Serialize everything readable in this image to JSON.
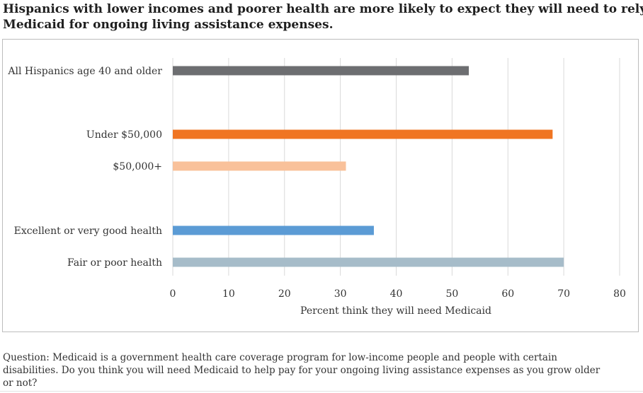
{
  "title_lines": [
    "Hispanics with lower incomes and poorer health are more likely to expect they will need to rely on",
    "Medicaid for ongoing living assistance expenses."
  ],
  "question_lines": [
    "Question: Medicaid is a government health care coverage program for low-income people and people with certain",
    "disabilities. Do you think you will need Medicaid to help pay for your ongoing living assistance expenses as you grow older",
    "or not?"
  ],
  "chart_data": {
    "type": "bar",
    "orientation": "horizontal",
    "categories": [
      "All Hispanics age 40 and older",
      "Under $50,000",
      "$50,000+",
      "Excellent or very good health",
      "Fair or poor health"
    ],
    "values": [
      53,
      68,
      31,
      36,
      70
    ],
    "colors": [
      "#6d6e71",
      "#f07522",
      "#f9c19a",
      "#5b9bd5",
      "#a6bcc9"
    ],
    "xlabel": "Percent think they will need Medicaid",
    "ylabel": "",
    "xlim": [
      0,
      80
    ],
    "xticks": [
      "0",
      "10",
      "20",
      "30",
      "40",
      "50",
      "60",
      "70",
      "80"
    ],
    "grid": true,
    "gridColor": "#d9d9d9"
  }
}
